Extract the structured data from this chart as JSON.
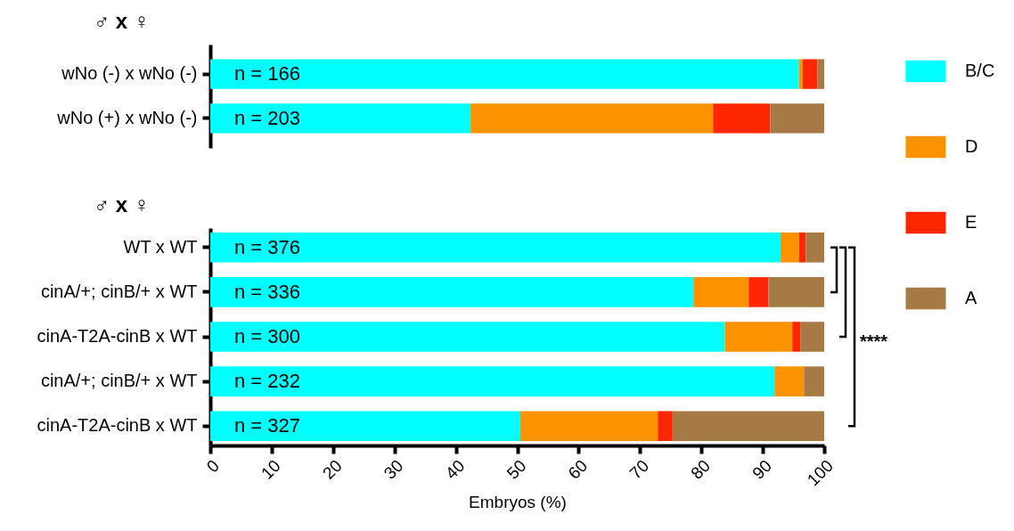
{
  "chart_data": [
    {
      "type": "bar",
      "orientation": "horizontal",
      "stacked": true,
      "ylabel": "♂ x ♀",
      "categories": [
        "wNo (-) x wNo (-)",
        "wNo (+) x wNo (-)"
      ],
      "series": [
        {
          "name": "B/C",
          "color": "#00ffff",
          "values": [
            95.9,
            42.4
          ]
        },
        {
          "name": "D",
          "color": "#fb9300",
          "values": [
            0.6,
            39.5
          ]
        },
        {
          "name": "E",
          "color": "#ff2600",
          "values": [
            2.4,
            9.3
          ]
        },
        {
          "name": "A",
          "color": "#a67a45",
          "values": [
            1.1,
            8.8
          ]
        }
      ],
      "xlim": [
        0,
        100
      ],
      "tick_labels": "y",
      "legend": "right",
      "annotations": [
        "n = 166",
        "n = 203"
      ]
    },
    {
      "type": "bar",
      "orientation": "horizontal",
      "stacked": true,
      "ylabel": "♂ x ♀",
      "xlabel": "Embryos (%)",
      "categories": [
        "WT x WT",
        "cinA/+; cinB/+ x WT",
        "cinA-T2A-cinB x WT",
        "cinA/+; cinB/+ x WT",
        "cinA-T2A-cinB x WT"
      ],
      "series": [
        {
          "name": "B/C",
          "color": "#00ffff",
          "values": [
            92.9,
            78.7,
            83.8,
            91.9,
            50.5
          ]
        },
        {
          "name": "D",
          "color": "#fb9300",
          "values": [
            3.0,
            9.0,
            11.0,
            4.8,
            22.4
          ]
        },
        {
          "name": "E",
          "color": "#ff2600",
          "values": [
            1.1,
            3.2,
            1.3,
            0,
            2.4
          ]
        },
        {
          "name": "A",
          "color": "#a67a45",
          "values": [
            3.0,
            9.1,
            3.9,
            3.3,
            24.7
          ]
        }
      ],
      "xlim": [
        0,
        100
      ],
      "xticks": [
        0,
        10,
        20,
        30,
        40,
        50,
        60,
        70,
        80,
        90,
        100
      ],
      "annotations": [
        "n = 376",
        "n = 336",
        "n = 300",
        "n = 232",
        "n = 327",
        "****"
      ]
    }
  ]
}
